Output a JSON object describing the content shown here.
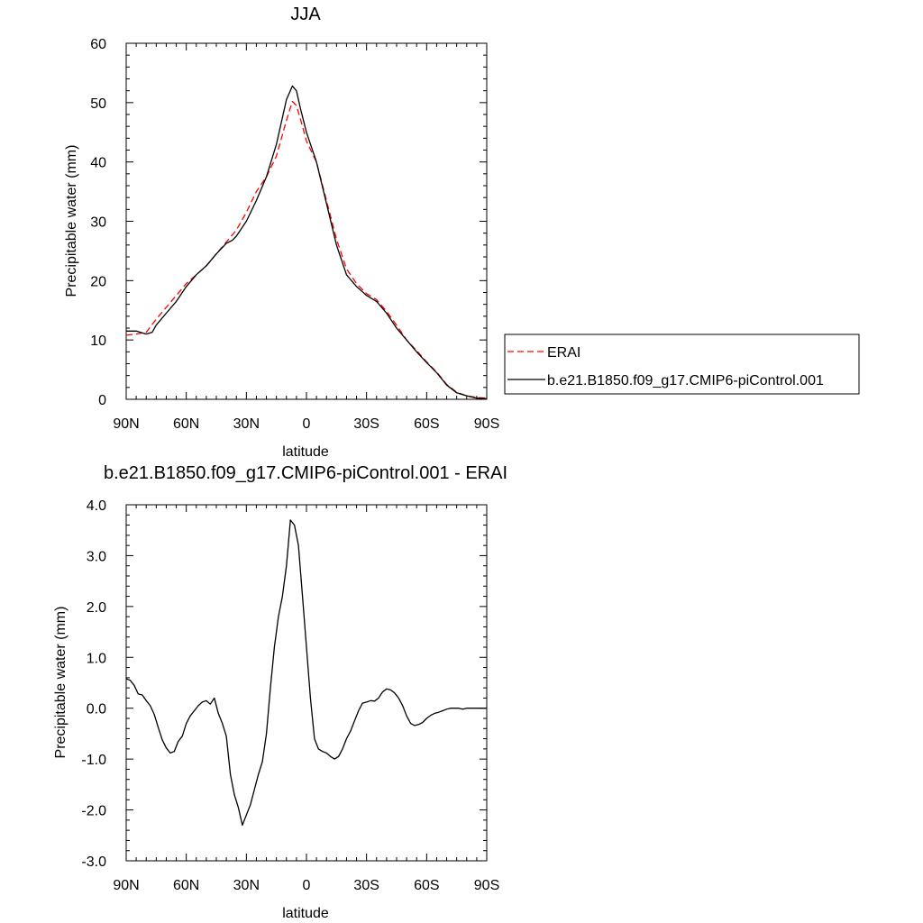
{
  "chart_data": [
    {
      "type": "line",
      "title": "JJA",
      "xlabel": "latitude",
      "ylabel": "Precipitable water (mm)",
      "xlim": [
        90,
        -90
      ],
      "ylim": [
        0,
        60
      ],
      "x_ticks": [
        {
          "value": 90,
          "label": "90N"
        },
        {
          "value": 60,
          "label": "60N"
        },
        {
          "value": 30,
          "label": "30N"
        },
        {
          "value": 0,
          "label": "0"
        },
        {
          "value": -30,
          "label": "30S"
        },
        {
          "value": -60,
          "label": "60S"
        },
        {
          "value": -90,
          "label": "90S"
        }
      ],
      "y_ticks": [
        {
          "value": 0,
          "label": "0"
        },
        {
          "value": 10,
          "label": "10"
        },
        {
          "value": 20,
          "label": "20"
        },
        {
          "value": 30,
          "label": "30"
        },
        {
          "value": 40,
          "label": "40"
        },
        {
          "value": 50,
          "label": "50"
        },
        {
          "value": 60,
          "label": "60"
        }
      ],
      "legend_position": "right",
      "series": [
        {
          "name": "ERAI",
          "color": "#ff0000",
          "dash": "dashed",
          "x": [
            90,
            85,
            80,
            75,
            70,
            65,
            60,
            55,
            50,
            45,
            40,
            35,
            30,
            25,
            20,
            15,
            10,
            7,
            5,
            2,
            0,
            -5,
            -10,
            -15,
            -20,
            -25,
            -30,
            -35,
            -40,
            -45,
            -50,
            -55,
            -60,
            -65,
            -70,
            -75,
            -80,
            -85,
            -90
          ],
          "y": [
            10.8,
            11.0,
            11.3,
            13.5,
            15.5,
            17.5,
            19.5,
            21.0,
            22.5,
            24.5,
            26.5,
            28.5,
            31.5,
            35.0,
            37.5,
            41.0,
            47.0,
            50.2,
            49.5,
            46.0,
            43.5,
            40.0,
            33.5,
            27.0,
            22.0,
            19.5,
            17.8,
            16.8,
            14.8,
            12.5,
            10.0,
            8.2,
            6.3,
            4.6,
            2.5,
            1.2,
            0.6,
            0.3,
            0.2
          ]
        },
        {
          "name": "b.e21.B1850.f09_g17.CMIP6-piControl.001",
          "color": "#000000",
          "dash": "solid",
          "x": [
            90,
            85,
            80,
            77,
            75,
            70,
            65,
            60,
            55,
            50,
            45,
            40,
            37,
            35,
            30,
            25,
            20,
            15,
            10,
            7,
            5,
            3,
            0,
            -5,
            -10,
            -15,
            -20,
            -25,
            -30,
            -35,
            -40,
            -45,
            -50,
            -55,
            -60,
            -65,
            -70,
            -75,
            -80,
            -85,
            -90
          ],
          "y": [
            11.5,
            11.5,
            11.0,
            11.3,
            12.5,
            14.5,
            16.5,
            19.0,
            21.0,
            22.5,
            24.5,
            26.3,
            26.8,
            27.5,
            30.0,
            33.5,
            37.5,
            43.0,
            50.5,
            52.8,
            52.0,
            49.0,
            45.0,
            40.0,
            33.0,
            26.0,
            21.0,
            19.0,
            17.5,
            16.5,
            14.5,
            12.0,
            10.0,
            8.0,
            6.2,
            4.5,
            2.4,
            1.1,
            0.6,
            0.2,
            0.1
          ]
        }
      ]
    },
    {
      "type": "line",
      "title": "b.e21.B1850.f09_g17.CMIP6-piControl.001 - ERAI",
      "xlabel": "latitude",
      "ylabel": "Precipitable water (mm)",
      "xlim": [
        90,
        -90
      ],
      "ylim": [
        -3.0,
        4.0
      ],
      "x_ticks": [
        {
          "value": 90,
          "label": "90N"
        },
        {
          "value": 60,
          "label": "60N"
        },
        {
          "value": 30,
          "label": "30N"
        },
        {
          "value": 0,
          "label": "0"
        },
        {
          "value": -30,
          "label": "30S"
        },
        {
          "value": -60,
          "label": "60S"
        },
        {
          "value": -90,
          "label": "90S"
        }
      ],
      "y_ticks": [
        {
          "value": -3.0,
          "label": "-3.0"
        },
        {
          "value": -2.0,
          "label": "-2.0"
        },
        {
          "value": -1.0,
          "label": "-1.0"
        },
        {
          "value": 0.0,
          "label": "0.0"
        },
        {
          "value": 1.0,
          "label": "1.0"
        },
        {
          "value": 2.0,
          "label": "2.0"
        },
        {
          "value": 3.0,
          "label": "3.0"
        },
        {
          "value": 4.0,
          "label": "4.0"
        }
      ],
      "series": [
        {
          "color": "#000000",
          "dash": "solid",
          "x": [
            90,
            88,
            86,
            84,
            82,
            80,
            78,
            76,
            74,
            72,
            70,
            68,
            66,
            64,
            62,
            60,
            58,
            56,
            54,
            52,
            50,
            48,
            46,
            44,
            42,
            40,
            38,
            36,
            34,
            32,
            30,
            28,
            26,
            24,
            22,
            20,
            18,
            16,
            14,
            12,
            10,
            8,
            6,
            4,
            2,
            0,
            -2,
            -4,
            -6,
            -8,
            -10,
            -12,
            -14,
            -16,
            -18,
            -20,
            -22,
            -24,
            -26,
            -28,
            -30,
            -32,
            -34,
            -36,
            -38,
            -40,
            -42,
            -44,
            -46,
            -48,
            -50,
            -52,
            -54,
            -56,
            -58,
            -60,
            -62,
            -64,
            -66,
            -68,
            -70,
            -72,
            -74,
            -76,
            -78,
            -80,
            -82,
            -84,
            -86,
            -88,
            -90
          ],
          "y": [
            0.58,
            0.55,
            0.45,
            0.28,
            0.26,
            0.15,
            0.05,
            -0.12,
            -0.38,
            -0.62,
            -0.78,
            -0.88,
            -0.85,
            -0.65,
            -0.55,
            -0.3,
            -0.15,
            -0.05,
            0.05,
            0.12,
            0.15,
            0.08,
            0.2,
            -0.1,
            -0.3,
            -0.55,
            -1.3,
            -1.7,
            -1.95,
            -2.3,
            -2.1,
            -1.9,
            -1.6,
            -1.3,
            -1.05,
            -0.5,
            0.4,
            1.2,
            1.8,
            2.2,
            2.8,
            3.7,
            3.6,
            3.2,
            2.2,
            1.2,
            0.2,
            -0.6,
            -0.8,
            -0.85,
            -0.88,
            -0.95,
            -1.0,
            -0.95,
            -0.8,
            -0.6,
            -0.45,
            -0.25,
            -0.05,
            0.1,
            0.12,
            0.15,
            0.14,
            0.2,
            0.32,
            0.38,
            0.36,
            0.3,
            0.2,
            0.05,
            -0.15,
            -0.3,
            -0.34,
            -0.32,
            -0.28,
            -0.2,
            -0.14,
            -0.1,
            -0.08,
            -0.05,
            -0.02,
            0.0,
            0.0,
            0.0,
            -0.02,
            0.0,
            0.0,
            0.0,
            0.0,
            0.0,
            0.0
          ]
        }
      ]
    }
  ]
}
